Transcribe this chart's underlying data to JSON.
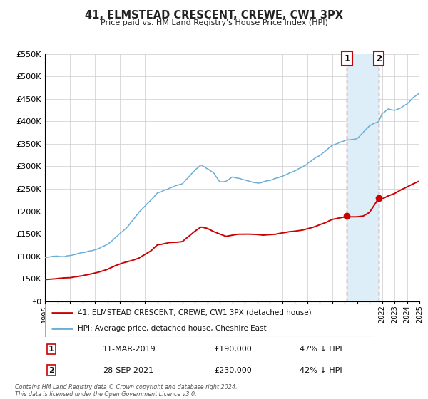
{
  "title": "41, ELMSTEAD CRESCENT, CREWE, CW1 3PX",
  "subtitle": "Price paid vs. HM Land Registry's House Price Index (HPI)",
  "legend_line1": "41, ELMSTEAD CRESCENT, CREWE, CW1 3PX (detached house)",
  "legend_line2": "HPI: Average price, detached house, Cheshire East",
  "footnote": "Contains HM Land Registry data © Crown copyright and database right 2024.\nThis data is licensed under the Open Government Licence v3.0.",
  "table_rows": [
    {
      "num": "1",
      "date": "11-MAR-2019",
      "price": "£190,000",
      "pct": "47% ↓ HPI"
    },
    {
      "num": "2",
      "date": "28-SEP-2021",
      "price": "£230,000",
      "pct": "42% ↓ HPI"
    }
  ],
  "sale1_year": 2019.19,
  "sale1_price": 190000,
  "sale2_year": 2021.74,
  "sale2_price": 230000,
  "hpi_color": "#6baed6",
  "price_color": "#cc0000",
  "marker_color": "#cc0000",
  "vline_color": "#cc0000",
  "shade_color": "#ddeef8",
  "grid_color": "#cccccc",
  "bg_color": "#ffffff",
  "ylim": [
    0,
    550000
  ],
  "yticks": [
    0,
    50000,
    100000,
    150000,
    200000,
    250000,
    300000,
    350000,
    400000,
    450000,
    500000,
    550000
  ],
  "xlim_start": 1995,
  "xlim_end": 2025,
  "hpi_waypoints": [
    [
      1995.0,
      97000
    ],
    [
      1996.5,
      100000
    ],
    [
      1997.0,
      103000
    ],
    [
      1999.0,
      118000
    ],
    [
      2000.0,
      130000
    ],
    [
      2001.5,
      165000
    ],
    [
      2002.5,
      200000
    ],
    [
      2003.5,
      230000
    ],
    [
      2004.0,
      245000
    ],
    [
      2005.0,
      255000
    ],
    [
      2006.0,
      265000
    ],
    [
      2007.0,
      295000
    ],
    [
      2007.5,
      308000
    ],
    [
      2008.5,
      290000
    ],
    [
      2009.0,
      268000
    ],
    [
      2009.5,
      270000
    ],
    [
      2010.0,
      278000
    ],
    [
      2011.0,
      272000
    ],
    [
      2012.0,
      265000
    ],
    [
      2013.0,
      268000
    ],
    [
      2014.0,
      278000
    ],
    [
      2015.0,
      290000
    ],
    [
      2016.0,
      305000
    ],
    [
      2017.0,
      325000
    ],
    [
      2018.0,
      348000
    ],
    [
      2019.0,
      358000
    ],
    [
      2019.19,
      360000
    ],
    [
      2020.0,
      362000
    ],
    [
      2021.0,
      390000
    ],
    [
      2021.74,
      398000
    ],
    [
      2022.0,
      415000
    ],
    [
      2022.5,
      425000
    ],
    [
      2023.0,
      422000
    ],
    [
      2023.5,
      428000
    ],
    [
      2024.0,
      438000
    ],
    [
      2024.5,
      452000
    ],
    [
      2025.0,
      462000
    ]
  ],
  "price_waypoints": [
    [
      1995.0,
      48000
    ],
    [
      1996.0,
      50000
    ],
    [
      1997.0,
      52000
    ],
    [
      1998.0,
      56000
    ],
    [
      1999.0,
      62000
    ],
    [
      2000.0,
      70000
    ],
    [
      2001.0,
      82000
    ],
    [
      2002.0,
      90000
    ],
    [
      2002.5,
      95000
    ],
    [
      2003.5,
      112000
    ],
    [
      2004.0,
      125000
    ],
    [
      2005.0,
      130000
    ],
    [
      2006.0,
      132000
    ],
    [
      2007.0,
      155000
    ],
    [
      2007.5,
      165000
    ],
    [
      2008.0,
      162000
    ],
    [
      2008.5,
      155000
    ],
    [
      2009.5,
      145000
    ],
    [
      2010.5,
      150000
    ],
    [
      2011.5,
      150000
    ],
    [
      2012.5,
      148000
    ],
    [
      2013.5,
      150000
    ],
    [
      2014.5,
      155000
    ],
    [
      2015.5,
      158000
    ],
    [
      2016.5,
      165000
    ],
    [
      2017.5,
      175000
    ],
    [
      2018.0,
      182000
    ],
    [
      2018.5,
      185000
    ],
    [
      2019.0,
      188000
    ],
    [
      2019.19,
      190000
    ],
    [
      2019.5,
      188000
    ],
    [
      2020.0,
      188000
    ],
    [
      2020.5,
      190000
    ],
    [
      2021.0,
      198000
    ],
    [
      2021.74,
      230000
    ],
    [
      2022.0,
      228000
    ],
    [
      2022.5,
      235000
    ],
    [
      2023.0,
      240000
    ],
    [
      2023.5,
      248000
    ],
    [
      2024.0,
      255000
    ],
    [
      2024.5,
      262000
    ],
    [
      2025.0,
      268000
    ]
  ]
}
